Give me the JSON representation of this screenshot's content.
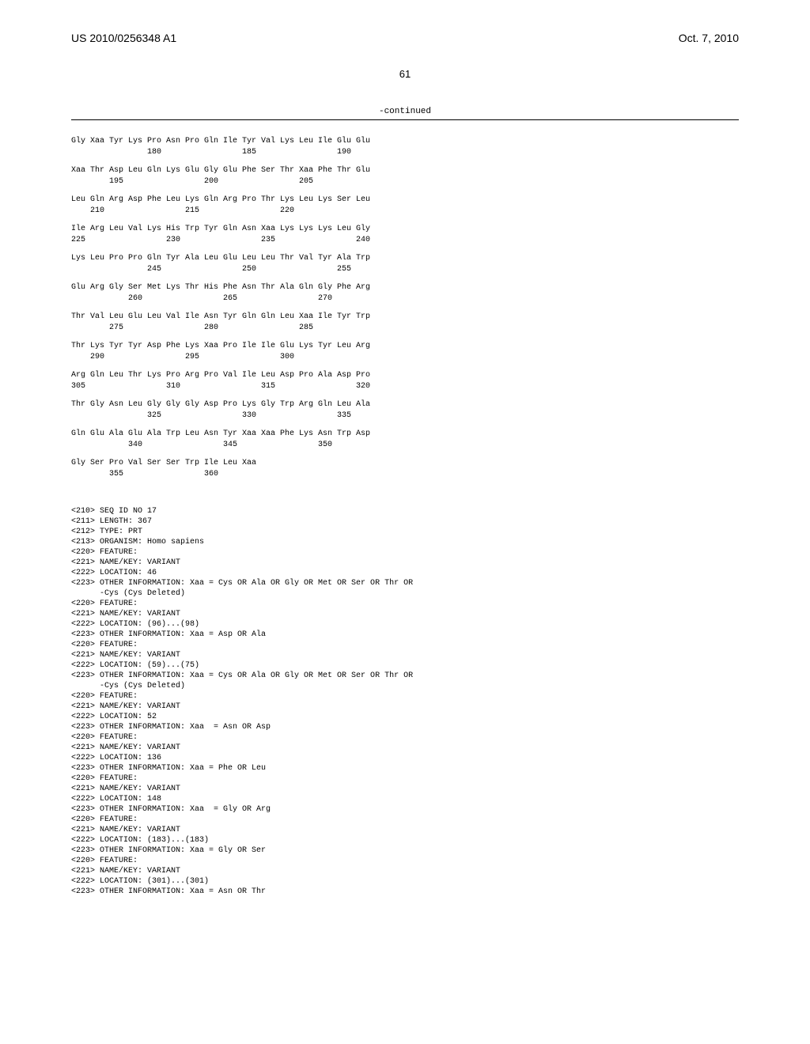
{
  "header": {
    "left": "US 2010/0256348 A1",
    "right": "Oct. 7, 2010"
  },
  "page_number": "61",
  "continued_label": "-continued",
  "sequence_rows": [
    {
      "aa": "Gly Xaa Tyr Lys Pro Asn Pro Gln Ile Tyr Val Lys Leu Ile Glu Glu",
      "nums": "                180                 185                 190"
    },
    {
      "aa": "Xaa Thr Asp Leu Gln Lys Glu Gly Glu Phe Ser Thr Xaa Phe Thr Glu",
      "nums": "        195                 200                 205"
    },
    {
      "aa": "Leu Gln Arg Asp Phe Leu Lys Gln Arg Pro Thr Lys Leu Lys Ser Leu",
      "nums": "    210                 215                 220"
    },
    {
      "aa": "Ile Arg Leu Val Lys His Trp Tyr Gln Asn Xaa Lys Lys Lys Leu Gly",
      "nums": "225                 230                 235                 240"
    },
    {
      "aa": "Lys Leu Pro Pro Gln Tyr Ala Leu Glu Leu Leu Thr Val Tyr Ala Trp",
      "nums": "                245                 250                 255"
    },
    {
      "aa": "Glu Arg Gly Ser Met Lys Thr His Phe Asn Thr Ala Gln Gly Phe Arg",
      "nums": "            260                 265                 270"
    },
    {
      "aa": "Thr Val Leu Glu Leu Val Ile Asn Tyr Gln Gln Leu Xaa Ile Tyr Trp",
      "nums": "        275                 280                 285"
    },
    {
      "aa": "Thr Lys Tyr Tyr Asp Phe Lys Xaa Pro Ile Ile Glu Lys Tyr Leu Arg",
      "nums": "    290                 295                 300"
    },
    {
      "aa": "Arg Gln Leu Thr Lys Pro Arg Pro Val Ile Leu Asp Pro Ala Asp Pro",
      "nums": "305                 310                 315                 320"
    },
    {
      "aa": "Thr Gly Asn Leu Gly Gly Gly Asp Pro Lys Gly Trp Arg Gln Leu Ala",
      "nums": "                325                 330                 335"
    },
    {
      "aa": "Gln Glu Ala Glu Ala Trp Leu Asn Tyr Xaa Xaa Phe Lys Asn Trp Asp",
      "nums": "            340                 345                 350"
    },
    {
      "aa": "Gly Ser Pro Val Ser Ser Trp Ile Leu Xaa",
      "nums": "        355                 360"
    }
  ],
  "features": [
    "<210> SEQ ID NO 17",
    "<211> LENGTH: 367",
    "<212> TYPE: PRT",
    "<213> ORGANISM: Homo sapiens",
    "<220> FEATURE:",
    "<221> NAME/KEY: VARIANT",
    "<222> LOCATION: 46",
    "<223> OTHER INFORMATION: Xaa = Cys OR Ala OR Gly OR Met OR Ser OR Thr OR",
    "      -Cys (Cys Deleted)",
    "<220> FEATURE:",
    "<221> NAME/KEY: VARIANT",
    "<222> LOCATION: (96)...(98)",
    "<223> OTHER INFORMATION: Xaa = Asp OR Ala",
    "<220> FEATURE:",
    "<221> NAME/KEY: VARIANT",
    "<222> LOCATION: (59)...(75)",
    "<223> OTHER INFORMATION: Xaa = Cys OR Ala OR Gly OR Met OR Ser OR Thr OR",
    "      -Cys (Cys Deleted)",
    "<220> FEATURE:",
    "<221> NAME/KEY: VARIANT",
    "<222> LOCATION: 52",
    "<223> OTHER INFORMATION: Xaa  = Asn OR Asp",
    "<220> FEATURE:",
    "<221> NAME/KEY: VARIANT",
    "<222> LOCATION: 136",
    "<223> OTHER INFORMATION: Xaa = Phe OR Leu",
    "<220> FEATURE:",
    "<221> NAME/KEY: VARIANT",
    "<222> LOCATION: 148",
    "<223> OTHER INFORMATION: Xaa  = Gly OR Arg",
    "<220> FEATURE:",
    "<221> NAME/KEY: VARIANT",
    "<222> LOCATION: (183)...(183)",
    "<223> OTHER INFORMATION: Xaa = Gly OR Ser",
    "<220> FEATURE:",
    "<221> NAME/KEY: VARIANT",
    "<222> LOCATION: (301)...(301)",
    "<223> OTHER INFORMATION: Xaa = Asn OR Thr"
  ]
}
